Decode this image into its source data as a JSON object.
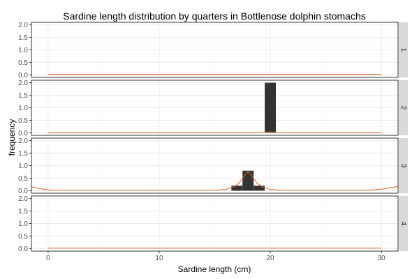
{
  "chart_data": {
    "type": "bar",
    "title": "Sardine length distribution by quarters in Bottlenose dolphin stomachs",
    "xlabel": "Sardine length (cm)",
    "ylabel": "frequency",
    "xlim": [
      -1.5,
      31.5
    ],
    "ylim": [
      -0.1,
      2.1
    ],
    "x_ticks": [
      0,
      10,
      20,
      30
    ],
    "y_ticks": [
      0.0,
      0.5,
      1.0,
      1.5,
      2.0
    ],
    "y_tick_labels": [
      "0.0",
      "0.5",
      "1.0",
      "1.5",
      "2.0"
    ],
    "grid": true,
    "bar_width": 1,
    "facets": [
      {
        "label": "1",
        "bars": [],
        "density": [
          [
            0,
            0.02
          ],
          [
            30,
            0.02
          ]
        ]
      },
      {
        "label": "2",
        "bars": [
          {
            "x": 20,
            "value": 2.0
          }
        ],
        "density": [
          [
            0,
            0.02
          ],
          [
            19.7,
            0.02
          ],
          [
            20,
            0.04
          ],
          [
            20.3,
            0.02
          ],
          [
            30,
            0.02
          ]
        ]
      },
      {
        "label": "3",
        "bars": [
          {
            "x": 17,
            "value": 0.2
          },
          {
            "x": 18,
            "value": 0.8
          },
          {
            "x": 19,
            "value": 0.2
          }
        ],
        "density": [
          [
            -1.5,
            0.16
          ],
          [
            -0.5,
            0.06
          ],
          [
            0.5,
            0.02
          ],
          [
            2,
            0.02
          ],
          [
            5,
            0.02
          ],
          [
            10,
            0.02
          ],
          [
            15,
            0.02
          ],
          [
            16,
            0.05
          ],
          [
            16.7,
            0.15
          ],
          [
            17.2,
            0.3
          ],
          [
            17.6,
            0.55
          ],
          [
            18,
            0.78
          ],
          [
            18.4,
            0.55
          ],
          [
            18.8,
            0.3
          ],
          [
            19.3,
            0.15
          ],
          [
            20,
            0.05
          ],
          [
            21,
            0.02
          ],
          [
            25,
            0.02
          ],
          [
            29,
            0.02
          ],
          [
            30.2,
            0.07
          ],
          [
            31.5,
            0.17
          ]
        ]
      },
      {
        "label": "4",
        "bars": [],
        "density": [
          [
            0,
            0.02
          ],
          [
            30,
            0.02
          ]
        ]
      }
    ],
    "colors": {
      "bar": "#333333",
      "density": "#e8601c",
      "strip": "#d9d9d9",
      "panel_border": "#333333",
      "grid": "#ebebeb"
    }
  }
}
